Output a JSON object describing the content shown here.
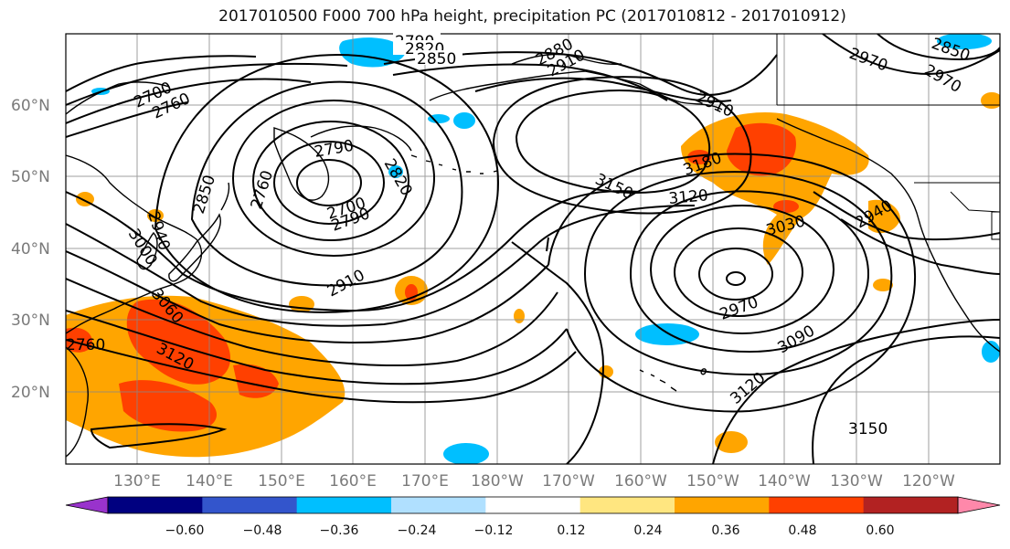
{
  "title": "2017010500 F000 700 hPa height, precipitation PC (2017010812 - 2017010912)",
  "map": {
    "lon_labels": [
      "130°E",
      "140°E",
      "150°E",
      "160°E",
      "170°E",
      "180°W",
      "170°W",
      "160°W",
      "150°W",
      "140°W",
      "130°W",
      "120°W"
    ],
    "lat_labels": [
      "60°N",
      "50°N",
      "40°N",
      "30°N",
      "20°N"
    ],
    "contour_labels": [
      "2790",
      "2820",
      "2850",
      "2880",
      "2910",
      "2970",
      "2700",
      "2760",
      "2790",
      "2820",
      "2850",
      "2940",
      "3000",
      "2760",
      "2790",
      "2700",
      "2910",
      "3120",
      "2760",
      "3060",
      "3150",
      "3120",
      "3180",
      "3030",
      "2940",
      "2970",
      "3090",
      "3120",
      "3150",
      "2970",
      "2910",
      "2850",
      "3120",
      "2880"
    ]
  },
  "colorbar": {
    "ticks": [
      "−0.60",
      "−0.48",
      "−0.36",
      "−0.24",
      "−0.12",
      "0.12",
      "0.24",
      "0.36",
      "0.48",
      "0.60"
    ],
    "colors": [
      "#9933cc",
      "#000080",
      "#3355cc",
      "#00bfff",
      "#b0e0ff",
      "#ffffff",
      "#ffe680",
      "#ffa500",
      "#ff4000",
      "#b22222",
      "#ff88aa"
    ]
  },
  "shading_colors": {
    "orange": "#ffa500",
    "red_orange": "#ff4000",
    "light_yellow": "#ffe680",
    "sky": "#00bfff",
    "pale_blue": "#b0e0ff"
  }
}
